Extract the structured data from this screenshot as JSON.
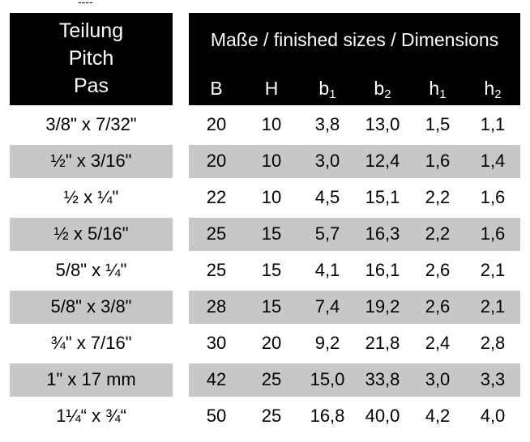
{
  "top_mark": "----",
  "header": {
    "pitch_lines": [
      "Teilung",
      "Pitch",
      "Pas"
    ],
    "dimensions_title": "Maße / finished sizes / Dimensions",
    "columns": [
      {
        "base": "B",
        "sub": ""
      },
      {
        "base": "H",
        "sub": ""
      },
      {
        "base": "b",
        "sub": "1"
      },
      {
        "base": "b",
        "sub": "2"
      },
      {
        "base": "h",
        "sub": "1"
      },
      {
        "base": "h",
        "sub": "2"
      }
    ]
  },
  "rows": [
    {
      "pitch": "3/8\" x 7/32\"",
      "values": [
        "20",
        "10",
        "3,8",
        "13,0",
        "1,5",
        "1,1"
      ],
      "shaded": false
    },
    {
      "pitch": "½\" x 3/16\"",
      "values": [
        "20",
        "10",
        "3,0",
        "12,4",
        "1,6",
        "1,4"
      ],
      "shaded": true
    },
    {
      "pitch": "½ x ¼\"",
      "values": [
        "22",
        "10",
        "4,5",
        "15,1",
        "2,2",
        "1,6"
      ],
      "shaded": false
    },
    {
      "pitch": "½ x 5/16\"",
      "values": [
        "25",
        "15",
        "5,7",
        "16,3",
        "2,2",
        "1,6"
      ],
      "shaded": true
    },
    {
      "pitch": "5/8\" x ¼\"",
      "values": [
        "25",
        "15",
        "4,1",
        "16,1",
        "2,6",
        "2,1"
      ],
      "shaded": false
    },
    {
      "pitch": "5/8\" x 3/8\"",
      "values": [
        "28",
        "15",
        "7,4",
        "19,2",
        "2,6",
        "2,1"
      ],
      "shaded": true
    },
    {
      "pitch": "¾\" x 7/16\"",
      "values": [
        "30",
        "20",
        "9,2",
        "21,8",
        "2,4",
        "2,8"
      ],
      "shaded": false
    },
    {
      "pitch": "1\" x 17 mm",
      "values": [
        "42",
        "25",
        "15,0",
        "33,8",
        "3,0",
        "3,3"
      ],
      "shaded": true
    },
    {
      "pitch": "1¼“ x ¾“",
      "values": [
        "50",
        "25",
        "16,8",
        "40,0",
        "4,2",
        "4,0"
      ],
      "shaded": false
    }
  ]
}
